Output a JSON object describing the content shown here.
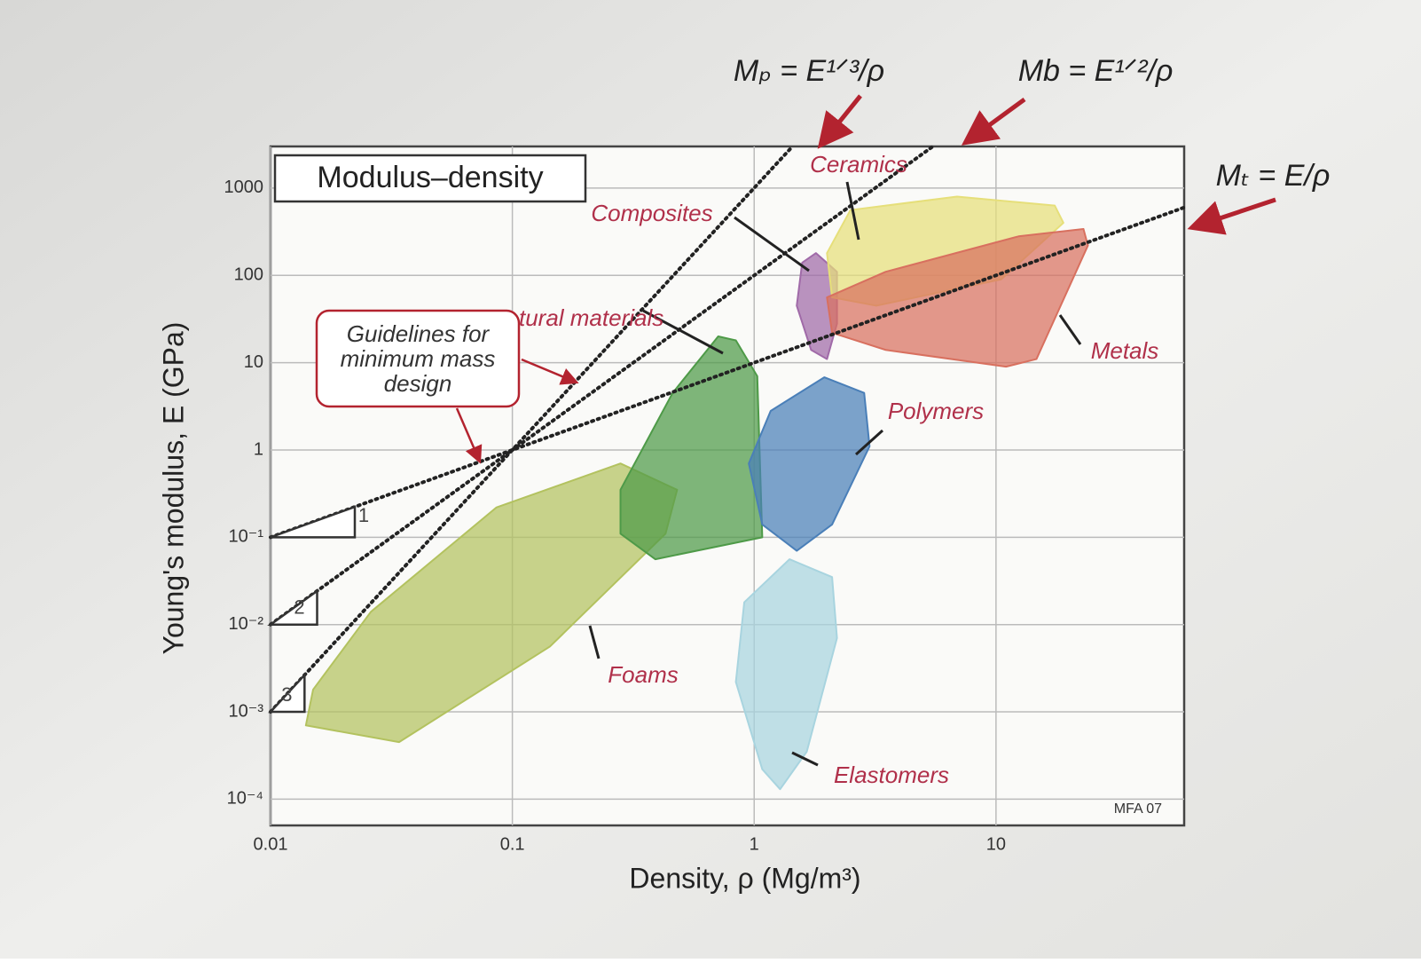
{
  "chart_data": {
    "type": "region",
    "title": "Modulus–density",
    "xlabel": "Density, ρ (Mg/m³)",
    "ylabel": "Young's modulus, E (GPa)",
    "xscale": "log",
    "yscale": "log",
    "grid": true,
    "xlim": [
      0.01,
      60
    ],
    "ylim": [
      5e-05,
      3000
    ],
    "xticks": [
      0.01,
      0.1,
      1,
      10
    ],
    "yticks": [
      1000,
      100,
      10,
      1,
      {
        "value": 0.1,
        "label": "10⁻¹"
      },
      {
        "value": 0.01,
        "label": "10⁻²"
      },
      {
        "value": 0.001,
        "label": "10⁻³"
      },
      {
        "value": 0.0001,
        "label": "10⁻⁴"
      }
    ],
    "series": [
      {
        "name": "Foams",
        "color": "#b3c25f",
        "x": [
          0.014,
          0.034,
          0.143,
          0.43,
          0.48,
          0.28,
          0.086,
          0.026,
          0.015
        ],
        "y": [
          0.0007,
          0.00045,
          0.0056,
          0.11,
          0.35,
          0.7,
          0.22,
          0.014,
          0.0018
        ]
      },
      {
        "name": "Natural materials",
        "color": "#4e9a48",
        "x": [
          0.28,
          0.39,
          1.08,
          1.03,
          0.84,
          0.71,
          0.46,
          0.28
        ],
        "y": [
          0.11,
          0.056,
          0.1,
          7,
          18,
          20,
          4.5,
          0.35
        ]
      },
      {
        "name": "Polymers",
        "color": "#4a7fb8",
        "x": [
          0.95,
          1.08,
          1.5,
          2.1,
          3.0,
          2.85,
          1.95,
          1.17
        ],
        "y": [
          0.7,
          0.14,
          0.07,
          0.14,
          1.1,
          4.5,
          6.8,
          2.8
        ]
      },
      {
        "name": "Elastomers",
        "color": "#a8d4df",
        "x": [
          0.84,
          1.08,
          1.28,
          1.65,
          2.2,
          2.1,
          1.4,
          0.91
        ],
        "y": [
          0.0022,
          0.00022,
          0.00013,
          0.00035,
          0.007,
          0.035,
          0.056,
          0.018
        ]
      },
      {
        "name": "Composites",
        "color": "#a06aa8",
        "x": [
          1.58,
          1.5,
          1.72,
          2.0,
          2.2,
          2.2,
          1.8
        ],
        "y": [
          140,
          45,
          14,
          11,
          28,
          110,
          180
        ]
      },
      {
        "name": "Ceramics",
        "color": "#e6df7a",
        "x": [
          2.1,
          3.2,
          10.5,
          19,
          17.5,
          6.9,
          2.5,
          2.0
        ],
        "y": [
          56,
          45,
          90,
          400,
          630,
          800,
          560,
          180
        ]
      },
      {
        "name": "Metals",
        "color": "#d8705f",
        "x": [
          2.0,
          2.1,
          3.5,
          11,
          14.7,
          24,
          23,
          12.4,
          3.5
        ],
        "y": [
          56,
          22,
          14,
          9,
          11,
          220,
          340,
          280,
          110
        ]
      }
    ],
    "guidelines": [
      {
        "name": "Mₜ = E/ρ",
        "slope": 1,
        "x": [
          0.01,
          60
        ],
        "y": [
          0.1,
          600
        ]
      },
      {
        "name": "Mb = E¹ᐟ²/ρ",
        "slope": 2,
        "x": [
          0.01,
          5.48
        ],
        "y": [
          0.01,
          3000
        ]
      },
      {
        "name": "Mₚ = E¹ᐟ³/ρ",
        "slope": 3,
        "x": [
          0.01,
          1.44
        ],
        "y": [
          0.001,
          3000
        ]
      }
    ],
    "annotation": [
      "Guidelines for",
      "minimum mass",
      "design"
    ],
    "credit": "MFA 07"
  }
}
